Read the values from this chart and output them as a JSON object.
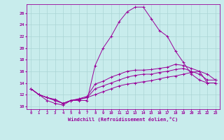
{
  "xlabel": "Windchill (Refroidissement éolien,°C)",
  "background_color": "#c8ecec",
  "grid_color": "#aad4d4",
  "line_color": "#990099",
  "xlim": [
    -0.5,
    23.5
  ],
  "ylim": [
    9.5,
    27.5
  ],
  "yticks": [
    10,
    12,
    14,
    16,
    18,
    20,
    22,
    24,
    26
  ],
  "xticks": [
    0,
    1,
    2,
    3,
    4,
    5,
    6,
    7,
    8,
    9,
    10,
    11,
    12,
    13,
    14,
    15,
    16,
    17,
    18,
    19,
    20,
    21,
    22,
    23
  ],
  "series": [
    [
      13.0,
      12.0,
      11.0,
      10.5,
      10.2,
      11.0,
      11.0,
      11.0,
      17.0,
      20.0,
      22.0,
      24.5,
      26.2,
      27.0,
      27.0,
      25.0,
      23.0,
      22.0,
      19.5,
      17.5,
      15.5,
      14.5,
      14.0,
      14.0
    ],
    [
      13.0,
      12.0,
      11.5,
      11.2,
      10.5,
      11.0,
      11.3,
      11.7,
      13.8,
      14.3,
      15.0,
      15.5,
      16.0,
      16.2,
      16.2,
      16.3,
      16.5,
      16.7,
      17.2,
      17.0,
      16.5,
      16.0,
      15.5,
      14.5
    ],
    [
      13.0,
      12.0,
      11.5,
      11.0,
      10.5,
      11.0,
      11.2,
      11.5,
      13.0,
      13.5,
      14.0,
      14.5,
      15.0,
      15.3,
      15.5,
      15.5,
      15.8,
      16.0,
      16.3,
      16.5,
      16.0,
      15.5,
      14.5,
      14.5
    ],
    [
      13.0,
      12.0,
      11.5,
      11.0,
      10.5,
      11.0,
      11.2,
      11.5,
      12.0,
      12.5,
      13.0,
      13.5,
      13.8,
      14.0,
      14.2,
      14.4,
      14.7,
      15.0,
      15.2,
      15.5,
      15.8,
      16.0,
      14.0,
      14.0
    ]
  ]
}
